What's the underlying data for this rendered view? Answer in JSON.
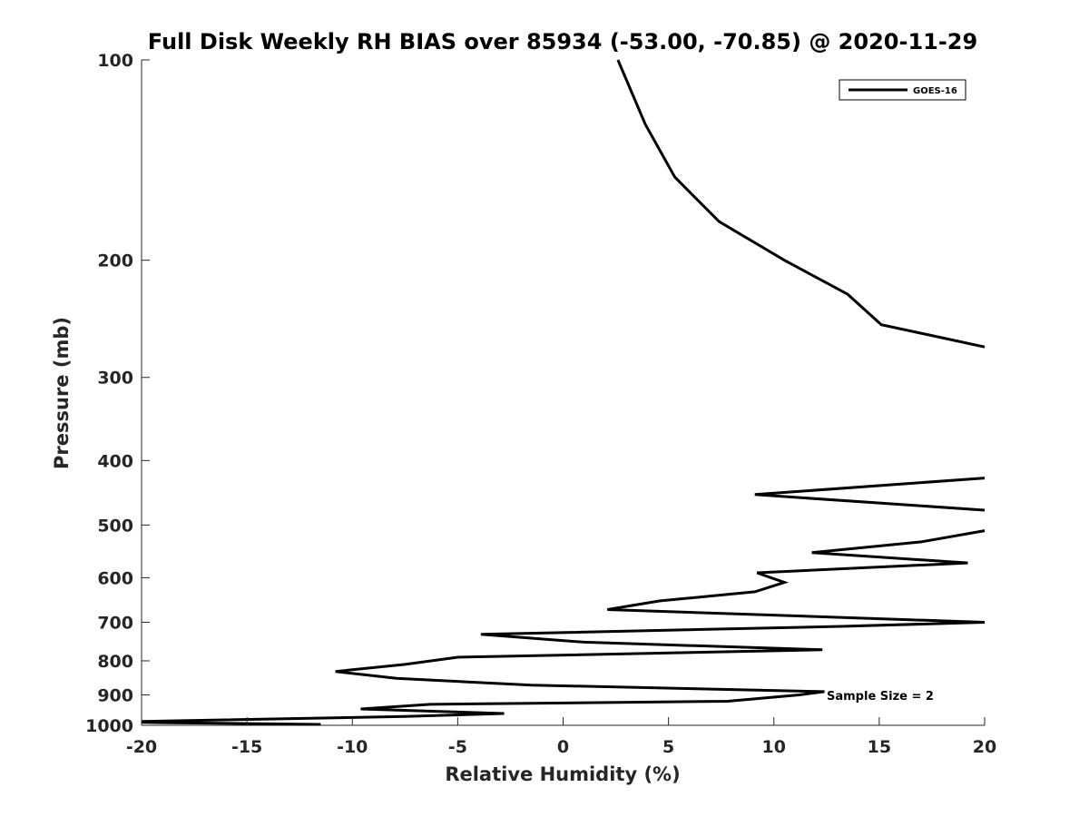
{
  "chart_data": {
    "type": "line",
    "title": "Full Disk Weekly RH BIAS over 85934 (-53.00, -70.85) @ 2020-11-29",
    "xlabel": "Relative Humidity (%)",
    "ylabel": "Pressure (mb)",
    "xlim": [
      -20,
      20
    ],
    "ylim": [
      1000,
      100
    ],
    "y_scale": "log",
    "y_reversed": true,
    "x_ticks": [
      -20,
      -15,
      -10,
      -5,
      0,
      5,
      10,
      15,
      20
    ],
    "x_tick_labels": [
      "-20",
      "-15",
      "-10",
      "-5",
      "0",
      "5",
      "10",
      "15",
      "20"
    ],
    "y_ticks": [
      100,
      200,
      300,
      400,
      500,
      600,
      700,
      800,
      900,
      1000
    ],
    "y_tick_labels": [
      "100",
      "200",
      "300",
      "400",
      "500",
      "600",
      "700",
      "800",
      "900",
      "1000"
    ],
    "grid": false,
    "legend_position": "top-right",
    "series": [
      {
        "name": "GOES-16",
        "color": "#000000",
        "segments": [
          [
            [
              2.6,
              100
            ],
            [
              3.9,
              125
            ],
            [
              5.3,
              150
            ],
            [
              7.4,
              175
            ],
            [
              10.5,
              200
            ],
            [
              13.5,
              225
            ],
            [
              15.1,
              250
            ],
            [
              20.0,
              270
            ]
          ],
          [
            [
              20.0,
              425
            ],
            [
              9.1,
              450
            ],
            [
              20.0,
              475
            ]
          ],
          [
            [
              20.0,
              510
            ],
            [
              17.0,
              530
            ],
            [
              11.8,
              550
            ],
            [
              19.2,
              570
            ],
            [
              9.2,
              590
            ],
            [
              10.5,
              610
            ],
            [
              9.1,
              630
            ],
            [
              4.6,
              650
            ],
            [
              2.1,
              670
            ],
            [
              20.0,
              700
            ],
            [
              13.2,
              710
            ],
            [
              -3.9,
              730
            ],
            [
              1.0,
              750
            ],
            [
              12.3,
              770
            ],
            [
              -5.0,
              790
            ],
            [
              -7.5,
              810
            ],
            [
              -10.8,
              830
            ],
            [
              -7.9,
              850
            ],
            [
              -1.5,
              870
            ],
            [
              12.4,
              890
            ],
            [
              11.2,
              900
            ],
            [
              7.8,
              920
            ],
            [
              -6.3,
              930
            ],
            [
              -9.6,
              945
            ],
            [
              -2.8,
              960
            ],
            [
              -7.5,
              970
            ],
            [
              -18.9,
              985
            ],
            [
              -20.0,
              987
            ]
          ],
          [
            [
              -20.0,
              990
            ],
            [
              -19.0,
              991
            ],
            [
              -14.8,
              994
            ],
            [
              -11.5,
              997
            ]
          ]
        ]
      }
    ],
    "annotations": [
      {
        "text": "Sample Size = 2",
        "position": "bottom-right"
      }
    ]
  }
}
